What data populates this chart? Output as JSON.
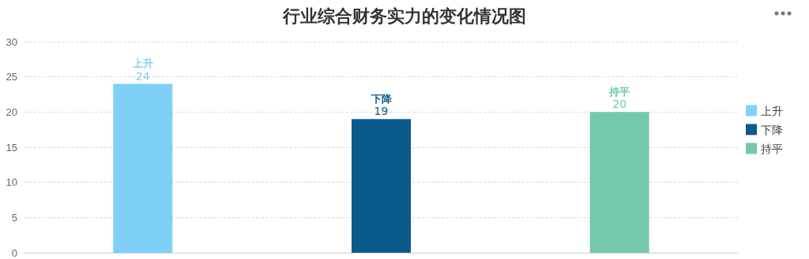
{
  "chart_data": {
    "type": "bar",
    "title": "行业综合财务实力的变化情况图",
    "categories": [
      null,
      null,
      null
    ],
    "series": [
      {
        "name": "上升",
        "color": "#7fd0f7",
        "values": [
          24,
          null,
          null
        ]
      },
      {
        "name": "下降",
        "color": "#0b5a8c",
        "values": [
          null,
          19,
          null
        ]
      },
      {
        "name": "持平",
        "color": "#75c9ab",
        "values": [
          null,
          null,
          20
        ]
      }
    ],
    "ylim": [
      0,
      30
    ],
    "yticks": [
      0,
      5,
      10,
      15,
      20,
      25,
      30
    ],
    "grid": "y",
    "legend": "right",
    "data_labels": true
  }
}
